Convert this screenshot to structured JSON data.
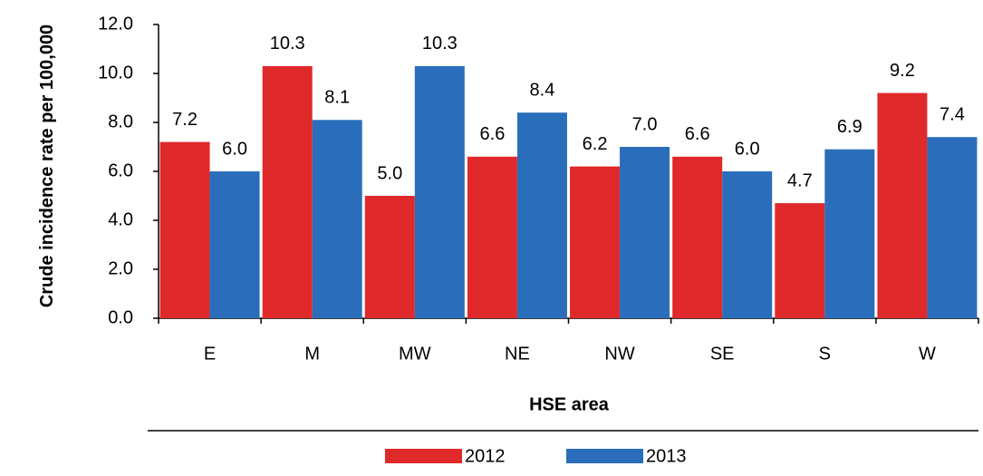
{
  "chart_data": {
    "type": "bar",
    "y_label": "Crude incidence rate per 100,000",
    "x_label": "HSE area",
    "categories": [
      "E",
      "M",
      "MW",
      "NE",
      "NW",
      "SE",
      "S",
      "W"
    ],
    "series": [
      {
        "name": "2012",
        "color": "#e0292b",
        "values": [
          7.2,
          10.3,
          5.0,
          6.6,
          6.2,
          6.6,
          4.7,
          9.2
        ],
        "value_labels": [
          "7.2",
          "10.3",
          "5.0",
          "6.6",
          "6.2",
          "6.6",
          "4.7",
          "9.2"
        ]
      },
      {
        "name": "2013",
        "color": "#2a6ebb",
        "values": [
          6.0,
          8.1,
          10.3,
          8.4,
          7.0,
          6.0,
          6.9,
          7.4
        ],
        "value_labels": [
          "6.0",
          "8.1",
          "10.3",
          "8.4",
          "7.0",
          "6.0",
          "6.9",
          "7.4"
        ]
      }
    ],
    "ylim": [
      0,
      12
    ],
    "yticks": [
      {
        "value": 0,
        "label": "0.0"
      },
      {
        "value": 2,
        "label": "2.0"
      },
      {
        "value": 4,
        "label": "4.0"
      },
      {
        "value": 6,
        "label": "6.0"
      },
      {
        "value": 8,
        "label": "8.0"
      },
      {
        "value": 10,
        "label": "10.0"
      },
      {
        "value": 12,
        "label": "12.0"
      }
    ],
    "legend": "bottom"
  }
}
